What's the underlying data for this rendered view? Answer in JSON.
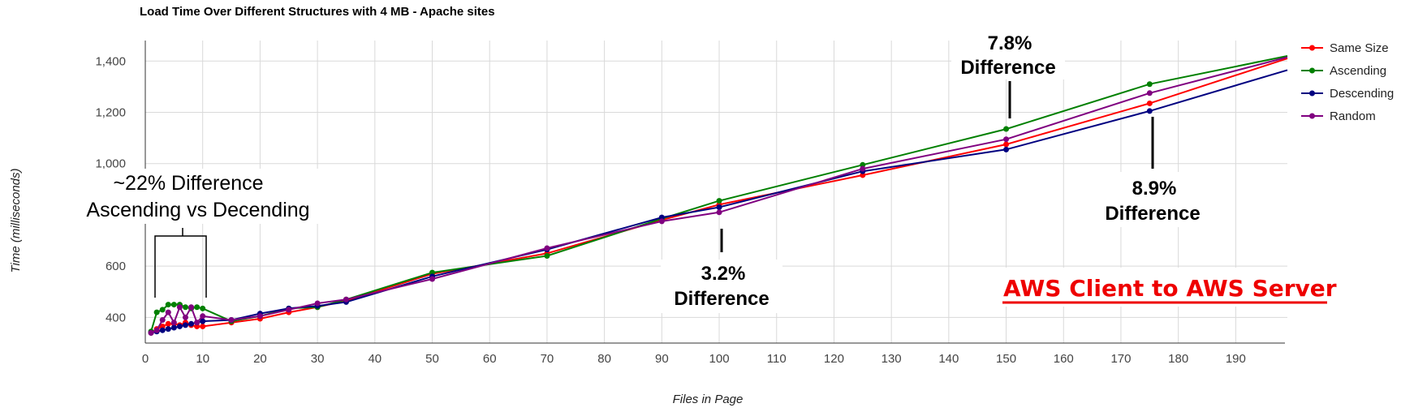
{
  "chart_data": {
    "type": "line",
    "title": "Load Time Over Different Structures with 4 MB - Apache sites",
    "xlabel": "Files in Page",
    "ylabel": "Time (milliseconds)",
    "xlim": [
      0,
      199
    ],
    "ylim": [
      300,
      1480
    ],
    "x_ticks": [
      0,
      10,
      20,
      30,
      40,
      50,
      60,
      70,
      80,
      90,
      100,
      110,
      120,
      130,
      140,
      150,
      160,
      170,
      180,
      190
    ],
    "x_tick_labels": [
      "0",
      "10",
      "20",
      "30",
      "40",
      "50",
      "60",
      "70",
      "80",
      "90",
      "100",
      "110",
      "120",
      "130",
      "140",
      "150",
      "160",
      "170",
      "180",
      "190"
    ],
    "y_ticks": [
      400,
      600,
      1000,
      1200,
      1400
    ],
    "y_tick_labels": [
      "400",
      "600",
      "1,000",
      "1,200",
      "1,400"
    ],
    "grid": true,
    "legend_position": "top-right",
    "x": [
      1,
      2,
      3,
      4,
      5,
      6,
      7,
      8,
      9,
      10,
      15,
      20,
      25,
      30,
      35,
      50,
      70,
      90,
      100,
      125,
      150,
      175,
      199
    ],
    "series": [
      {
        "name": "Same Size",
        "color": "#ff0000",
        "values": [
          340,
          355,
          365,
          375,
          375,
          370,
          380,
          370,
          365,
          365,
          380,
          395,
          420,
          440,
          465,
          570,
          650,
          780,
          840,
          955,
          1075,
          1235,
          1410
        ]
      },
      {
        "name": "Ascending",
        "color": "#008000",
        "values": [
          345,
          420,
          430,
          450,
          450,
          450,
          440,
          435,
          440,
          435,
          385,
          405,
          435,
          440,
          470,
          575,
          640,
          785,
          855,
          995,
          1135,
          1310,
          1420
        ]
      },
      {
        "name": "Descending",
        "color": "#000080",
        "values": [
          340,
          345,
          350,
          355,
          360,
          365,
          370,
          375,
          380,
          385,
          390,
          415,
          435,
          445,
          460,
          560,
          665,
          790,
          830,
          970,
          1055,
          1205,
          1365
        ]
      },
      {
        "name": "Random",
        "color": "#800080",
        "values": [
          340,
          350,
          390,
          420,
          380,
          440,
          400,
          440,
          380,
          405,
          390,
          405,
          430,
          455,
          470,
          550,
          670,
          775,
          810,
          980,
          1095,
          1275,
          1415
        ]
      }
    ],
    "annotations": [
      {
        "id": "ann-22",
        "lines": [
          "~22% Difference",
          "Ascending vs Decending"
        ]
      },
      {
        "id": "ann-32",
        "lines": [
          "3.2%",
          "Difference"
        ]
      },
      {
        "id": "ann-78",
        "lines": [
          "7.8%",
          "Difference"
        ]
      },
      {
        "id": "ann-89",
        "lines": [
          "8.9%",
          "Difference"
        ]
      }
    ],
    "caption": "AWS Client to AWS Server"
  }
}
